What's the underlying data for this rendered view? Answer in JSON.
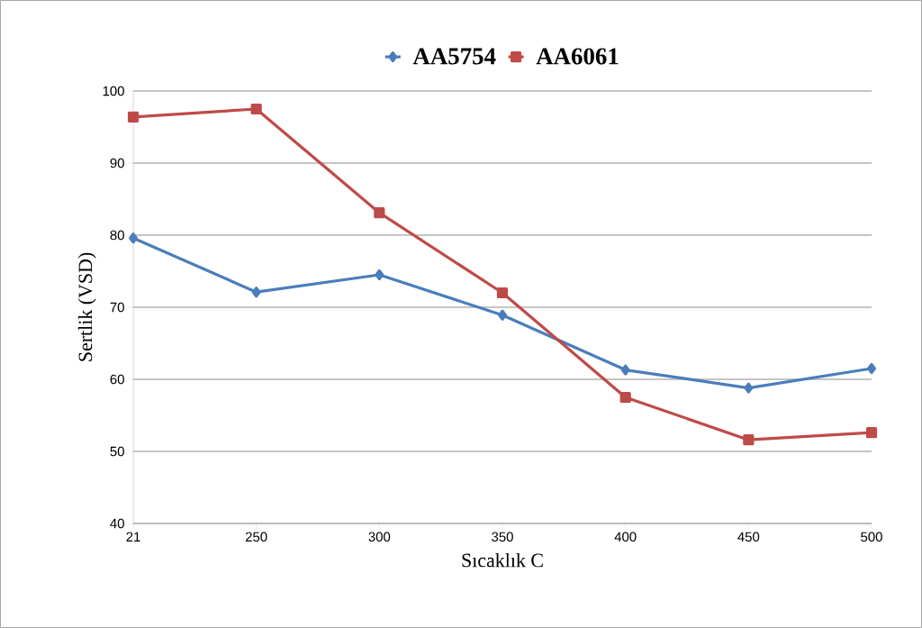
{
  "chart_data": {
    "type": "line",
    "xlabel": "Sıcaklık  C",
    "ylabel": "Sertlik (VSD)",
    "categories": [
      "21",
      "250",
      "300",
      "350",
      "400",
      "450",
      "500"
    ],
    "series": [
      {
        "name": "AA5754",
        "color": "#4a7ebb",
        "marker": "diamond",
        "values": [
          79.6,
          72.1,
          74.5,
          68.9,
          61.3,
          58.8,
          61.5
        ]
      },
      {
        "name": "AA6061",
        "color": "#be4b48",
        "marker": "square",
        "values": [
          96.4,
          97.5,
          83.1,
          72.0,
          57.5,
          51.6,
          52.6
        ]
      }
    ],
    "ylim": [
      40,
      100
    ],
    "yticks": [
      40,
      50,
      60,
      70,
      80,
      90,
      100
    ],
    "grid": "y",
    "legend": "top",
    "line_style": "solid"
  }
}
